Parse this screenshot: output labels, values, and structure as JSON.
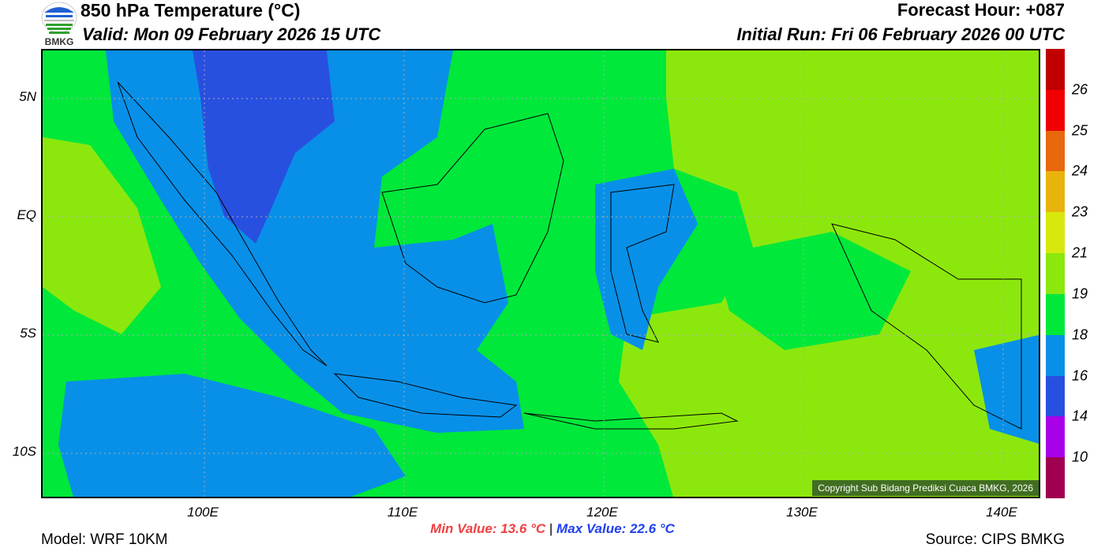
{
  "header": {
    "title": "850 hPa Temperature (°C)",
    "valid": "Valid: Mon 09 February 2026 15 UTC",
    "forecast_hour": "Forecast Hour: +087",
    "initial_run": "Initial Run: Fri 06 February 2026 00 UTC"
  },
  "logo": {
    "text": "BMKG"
  },
  "axes": {
    "lat": [
      "5N",
      "EQ",
      "5S",
      "10S"
    ],
    "lon": [
      "100E",
      "110E",
      "120E",
      "130E",
      "140E"
    ]
  },
  "colorbar": {
    "colors": [
      "#c00000",
      "#f00000",
      "#e8680c",
      "#e8b40c",
      "#d8e80c",
      "#8ce80c",
      "#00e83a",
      "#0890e8",
      "#2850e0",
      "#a800e8",
      "#a00050"
    ],
    "labels": [
      "26",
      "25",
      "24",
      "23",
      "21",
      "19",
      "18",
      "16",
      "14",
      "10"
    ]
  },
  "footer": {
    "min": "Min Value: 13.6 °C",
    "sep": "|",
    "max": "Max Value: 22.6 °C",
    "model": "Model: WRF 10KM",
    "source": "Source: CIPS BMKG",
    "copyright": "Copyright Sub Bidang Prediksi Cuaca BMKG, 2026"
  }
}
